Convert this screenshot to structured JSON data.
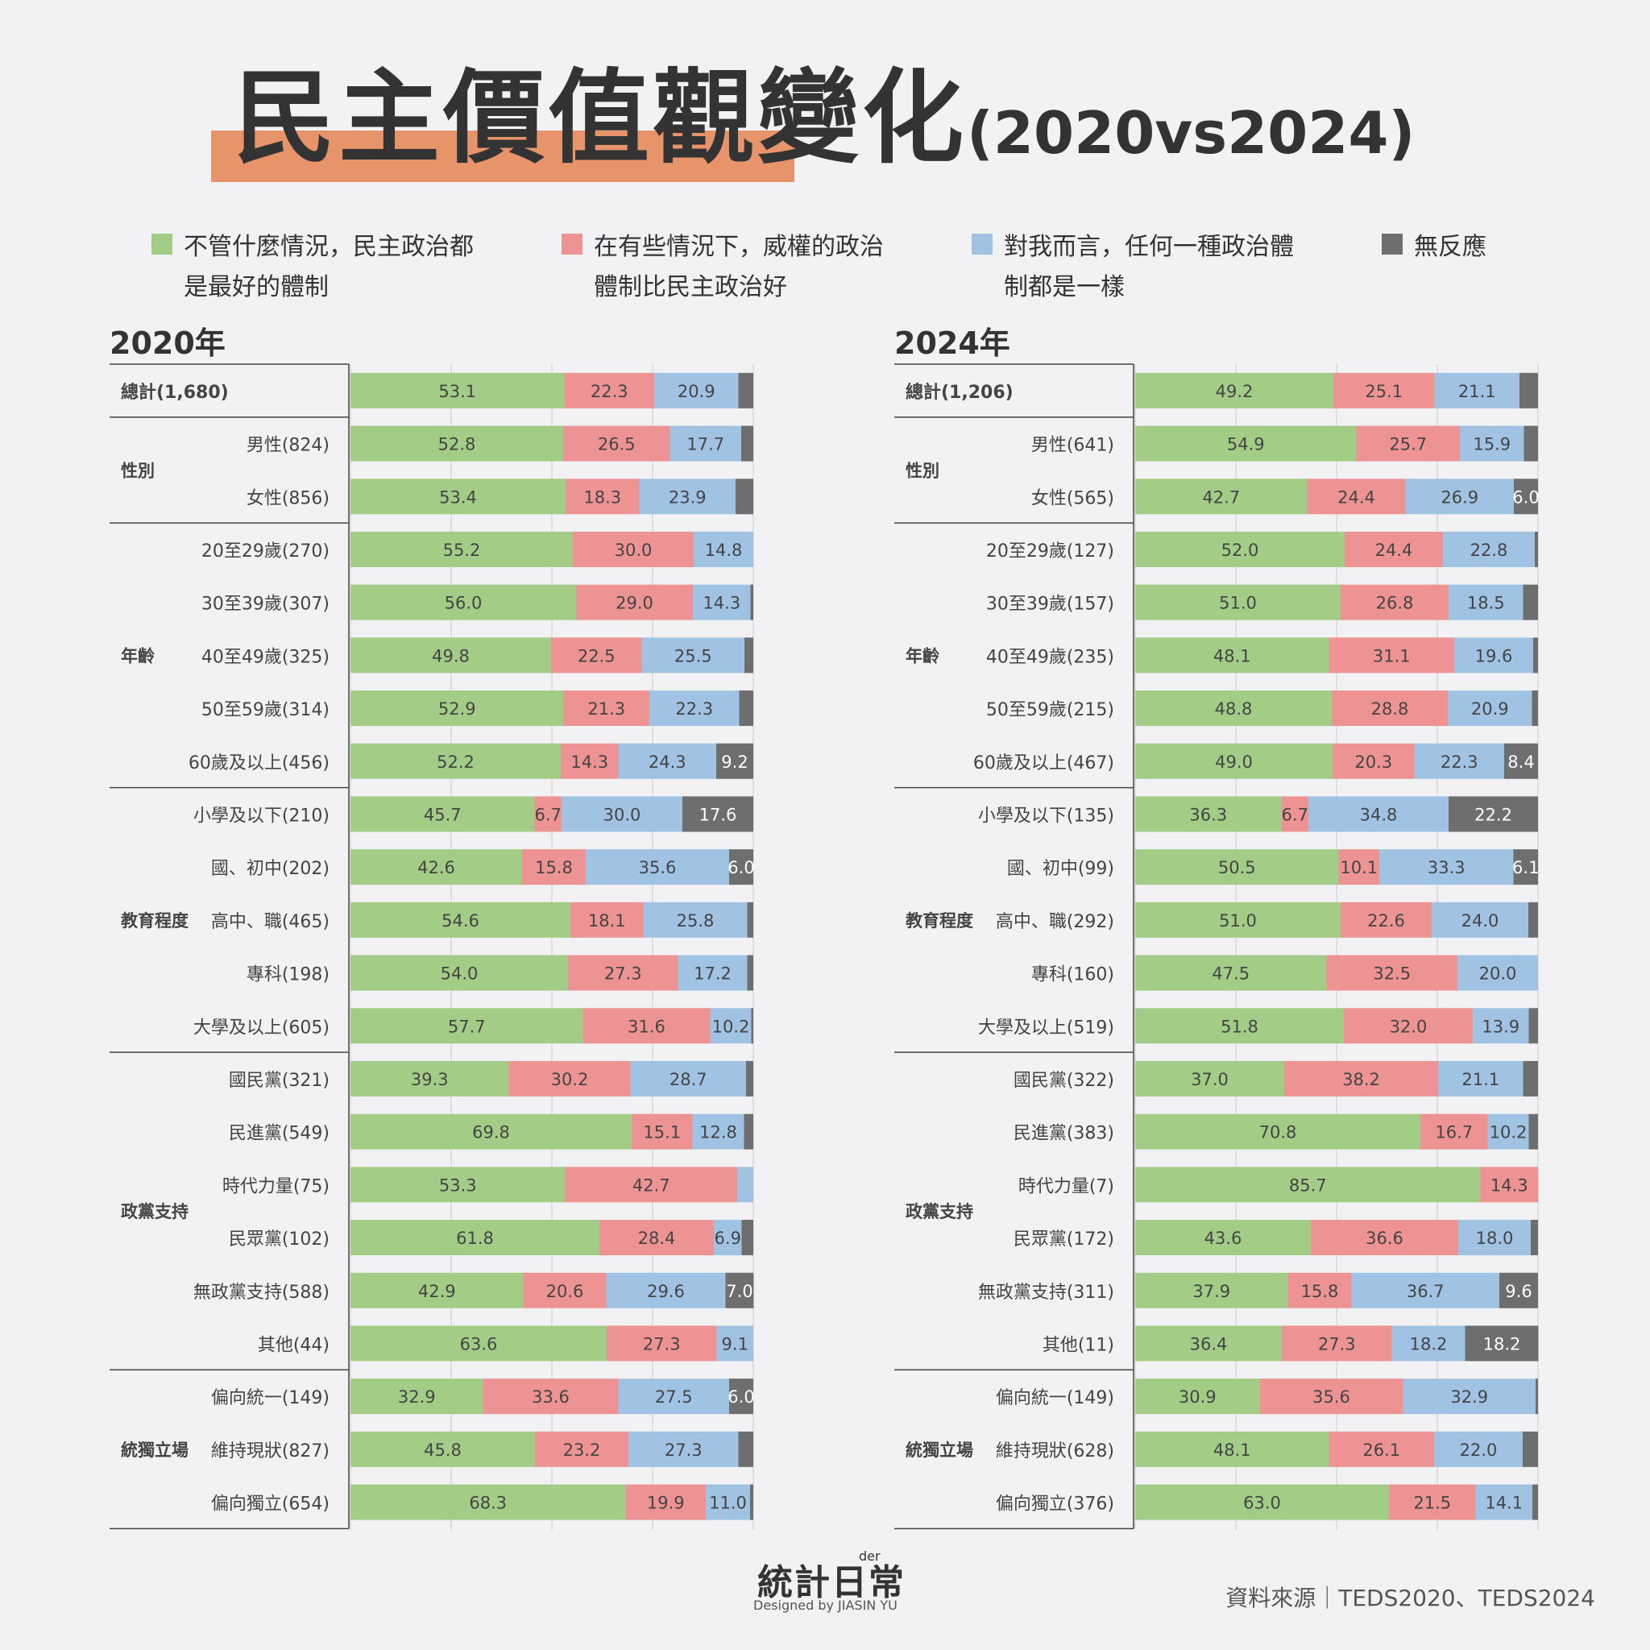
{
  "title": "民主價值觀變化",
  "title_suffix": "(2020vs2024)",
  "colors": {
    "green": "#a3cd87",
    "red": "#ee9393",
    "blue": "#a0c3e3",
    "gray": "#6e6e6e",
    "accent": "#e7946a"
  },
  "legend": [
    {
      "color": "#a3cd87",
      "label": "不管什麼情況，民主政治都\n是最好的體制"
    },
    {
      "color": "#ee9393",
      "label": "在有些情況下，威權的政治\n體制比民主政治好"
    },
    {
      "color": "#a0c3e3",
      "label": "對我而言，任何一種政治體\n制都是一樣"
    },
    {
      "color": "#6e6e6e",
      "label": "無反應"
    }
  ],
  "footer": {
    "logo": "統計日常",
    "logo_der": "der",
    "designer": "Designed by JIASIN YU",
    "source": "資料來源｜TEDS2020、TEDS2024"
  },
  "chart_data": [
    {
      "type": "bar",
      "title": "2020年",
      "series_names": [
        "不管什麼情況，民主政治都是最好的體制",
        "在有些情況下，威權的政治體制比民主政治好",
        "對我而言，任何一種政治體制都是一樣",
        "無反應"
      ],
      "groups": [
        {
          "name": "",
          "rows": [
            {
              "label": "總計(1,680)",
              "values": [
                53.1,
                22.3,
                20.9,
                3.7
              ]
            }
          ]
        },
        {
          "name": "性別",
          "rows": [
            {
              "label": "男性(824)",
              "values": [
                52.8,
                26.5,
                17.7,
                3.0
              ]
            },
            {
              "label": "女性(856)",
              "values": [
                53.4,
                18.3,
                23.9,
                4.4
              ]
            }
          ]
        },
        {
          "name": "年齡",
          "rows": [
            {
              "label": "20至29歲(270)",
              "values": [
                55.2,
                30.0,
                14.8,
                0
              ]
            },
            {
              "label": "30至39歲(307)",
              "values": [
                56.0,
                29.0,
                14.3,
                0.7
              ]
            },
            {
              "label": "40至49歲(325)",
              "values": [
                49.8,
                22.5,
                25.5,
                2.2
              ]
            },
            {
              "label": "50至59歲(314)",
              "values": [
                52.9,
                21.3,
                22.3,
                3.5
              ]
            },
            {
              "label": "60歲及以上(456)",
              "values": [
                52.2,
                14.3,
                24.3,
                9.2
              ]
            }
          ]
        },
        {
          "name": "教育程度",
          "rows": [
            {
              "label": "小學及以下(210)",
              "values": [
                45.7,
                6.7,
                30.0,
                17.6
              ]
            },
            {
              "label": "國、初中(202)",
              "values": [
                42.6,
                15.8,
                35.6,
                6.0
              ]
            },
            {
              "label": "高中、職(465)",
              "values": [
                54.6,
                18.1,
                25.8,
                1.5
              ]
            },
            {
              "label": "專科(198)",
              "values": [
                54.0,
                27.3,
                17.2,
                1.5
              ]
            },
            {
              "label": "大學及以上(605)",
              "values": [
                57.7,
                31.6,
                10.2,
                0.5
              ]
            }
          ]
        },
        {
          "name": "政黨支持",
          "rows": [
            {
              "label": "國民黨(321)",
              "values": [
                39.3,
                30.2,
                28.7,
                1.8
              ]
            },
            {
              "label": "民進黨(549)",
              "values": [
                69.8,
                15.1,
                12.8,
                2.3
              ]
            },
            {
              "label": "時代力量(75)",
              "values": [
                53.3,
                42.7,
                4.0,
                0
              ]
            },
            {
              "label": "民眾黨(102)",
              "values": [
                61.8,
                28.4,
                6.9,
                2.9
              ]
            },
            {
              "label": "無政黨支持(588)",
              "values": [
                42.9,
                20.6,
                29.6,
                7.0
              ]
            },
            {
              "label": "其他(44)",
              "values": [
                63.6,
                27.3,
                9.1,
                0
              ]
            }
          ]
        },
        {
          "name": "統獨立場",
          "rows": [
            {
              "label": "偏向統一(149)",
              "values": [
                32.9,
                33.6,
                27.5,
                6.0
              ]
            },
            {
              "label": "維持現狀(827)",
              "values": [
                45.8,
                23.2,
                27.3,
                3.7
              ]
            },
            {
              "label": "偏向獨立(654)",
              "values": [
                68.3,
                19.9,
                11.0,
                0.8
              ]
            }
          ]
        }
      ]
    },
    {
      "type": "bar",
      "title": "2024年",
      "series_names": [
        "不管什麼情況，民主政治都是最好的體制",
        "在有些情況下，威權的政治體制比民主政治好",
        "對我而言，任何一種政治體制都是一樣",
        "無反應"
      ],
      "groups": [
        {
          "name": "",
          "rows": [
            {
              "label": "總計(1,206)",
              "values": [
                49.2,
                25.1,
                21.1,
                4.6
              ]
            }
          ]
        },
        {
          "name": "性別",
          "rows": [
            {
              "label": "男性(641)",
              "values": [
                54.9,
                25.7,
                15.9,
                3.5
              ]
            },
            {
              "label": "女性(565)",
              "values": [
                42.7,
                24.4,
                26.9,
                6.0
              ]
            }
          ]
        },
        {
          "name": "年齡",
          "rows": [
            {
              "label": "20至29歲(127)",
              "values": [
                52.0,
                24.4,
                22.8,
                0.8
              ]
            },
            {
              "label": "30至39歲(157)",
              "values": [
                51.0,
                26.8,
                18.5,
                3.7
              ]
            },
            {
              "label": "40至49歲(235)",
              "values": [
                48.1,
                31.1,
                19.6,
                1.2
              ]
            },
            {
              "label": "50至59歲(215)",
              "values": [
                48.8,
                28.8,
                20.9,
                1.5
              ]
            },
            {
              "label": "60歲及以上(467)",
              "values": [
                49.0,
                20.3,
                22.3,
                8.4
              ]
            }
          ]
        },
        {
          "name": "教育程度",
          "rows": [
            {
              "label": "小學及以下(135)",
              "values": [
                36.3,
                6.7,
                34.8,
                22.2
              ]
            },
            {
              "label": "國、初中(99)",
              "values": [
                50.5,
                10.1,
                33.3,
                6.1
              ]
            },
            {
              "label": "高中、職(292)",
              "values": [
                51.0,
                22.6,
                24.0,
                2.4
              ]
            },
            {
              "label": "專科(160)",
              "values": [
                47.5,
                32.5,
                20.0,
                0
              ]
            },
            {
              "label": "大學及以上(519)",
              "values": [
                51.8,
                32.0,
                13.9,
                2.3
              ]
            }
          ]
        },
        {
          "name": "政黨支持",
          "rows": [
            {
              "label": "國民黨(322)",
              "values": [
                37.0,
                38.2,
                21.1,
                3.7
              ]
            },
            {
              "label": "民進黨(383)",
              "values": [
                70.8,
                16.7,
                10.2,
                2.3
              ]
            },
            {
              "label": "時代力量(7)",
              "values": [
                85.7,
                14.3,
                0,
                0
              ]
            },
            {
              "label": "民眾黨(172)",
              "values": [
                43.6,
                36.6,
                18.0,
                1.8
              ]
            },
            {
              "label": "無政黨支持(311)",
              "values": [
                37.9,
                15.8,
                36.7,
                9.6
              ]
            },
            {
              "label": "其他(11)",
              "values": [
                36.4,
                27.3,
                18.2,
                18.2
              ]
            }
          ]
        },
        {
          "name": "統獨立場",
          "rows": [
            {
              "label": "偏向統一(149)",
              "values": [
                30.9,
                35.6,
                32.9,
                0.6
              ]
            },
            {
              "label": "維持現狀(628)",
              "values": [
                48.1,
                26.1,
                22.0,
                3.8
              ]
            },
            {
              "label": "偏向獨立(376)",
              "values": [
                63.0,
                21.5,
                14.1,
                1.4
              ]
            }
          ]
        }
      ]
    }
  ]
}
